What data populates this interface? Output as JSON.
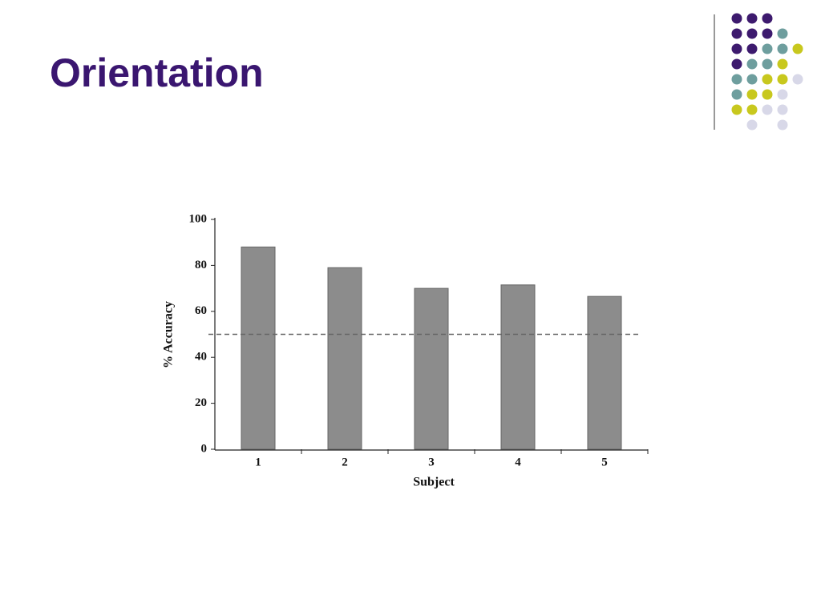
{
  "slide_title": "Orientation",
  "chart_data": {
    "type": "bar",
    "categories": [
      "1",
      "2",
      "3",
      "4",
      "5"
    ],
    "values": [
      88,
      79,
      70,
      71.5,
      66.5
    ],
    "color": "#8c8c8c",
    "x_label": "Subject",
    "y_label": "% Accuracy",
    "ylim": [
      0,
      100
    ],
    "yticks": [
      0,
      20,
      40,
      60,
      80,
      100
    ],
    "reference_line": 50,
    "grid": false
  }
}
